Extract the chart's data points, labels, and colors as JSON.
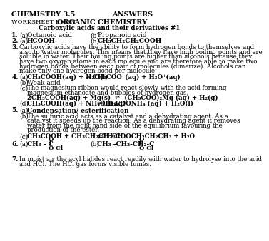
{
  "bg_color": "#ffffff",
  "text_color": "#000000",
  "font_size": 6.5,
  "title_left": "CHEMISTRY 3.5",
  "title_right": "ANSWERS",
  "subtitle_left": "WORKSHEET EIGHT",
  "subtitle_right": "ORGANIC CHEMISTRY",
  "topic": "Carboxylic acids and their derivatives #1",
  "q1a": "Octanoic acid",
  "q1b": "Propanoic acid",
  "q2a": "HCOOH",
  "q2b": "CH₃CH₂CH₂COOH",
  "q3_lines": [
    "Carboxylic acids have the ability to form hydrogen bonds to themselves and",
    "also to water molecules. This means that they have high boiling points and are",
    "soluble in water. Their boiling points are higher than alcohols because they",
    "have two oxygen atoms in each molecule and are therefore able to make two",
    "hydrogen bonds between each pair of molecules (dimerize). Alcohols can",
    "make only one hydrogen bond per molecule."
  ],
  "q4a": "CH₃COOH(aq) + H₂O(l)",
  "q4a_right": "CH₃COO⁻(aq) + H₃O⁺(aq)",
  "q4b": "Weak acid",
  "q4c_lines": [
    "The magnesium ribbon would react slowly with the acid forming",
    "magnesium ethanoate and bubbles of hydrogen gas.",
    "2CH₃COOH(aq) + Mg(s)  ⇌  (CH₃COO)₂Mg (aq) + H₂(g)"
  ],
  "q4d_left": "CH₃COOH(aq) + NH₄OH(aq)",
  "q4d_right": "CH₃COONH₄ (aq) + H₂O(l)",
  "q5a": "Condensation/ esterification",
  "q5b_lines": [
    "The sulfuric acid acts as a catalyst and a dehydrating agent. As a",
    "catalyst it speeds up the reaction. As a dehydrating agent it removes",
    "water from the right hand side of the equilibrium favouring the",
    "production of the ester."
  ],
  "q5c_left": "CH₃COOH + CH₃CH₂CH₂OH",
  "q5c_right": "CH₃COOCH₂CH₂CH₃ + H₂O",
  "q6a_left": "CH₃ - C",
  "q6a_o": "O",
  "q6a_ocl": "O-Cl",
  "q6b_left": "CH₃ -CH₂-CH₂-C",
  "q6b_o": "O",
  "q6b_ocl": "O-Cl",
  "q7_lines": [
    "In moist air the acyl halides react readily with water to hydrolyse into the acid",
    "and HCl. The HCl gas forms visible fumes."
  ],
  "equilibrium": "⇌"
}
